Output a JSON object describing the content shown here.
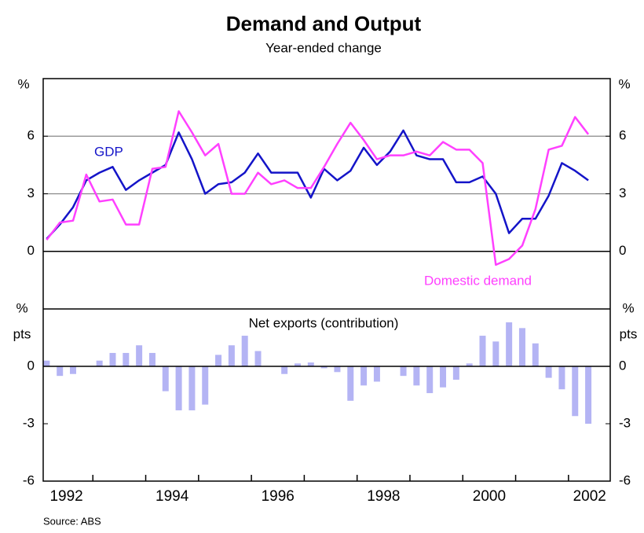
{
  "title": "Demand and Output",
  "subtitle": "Year-ended change",
  "source": "Source: ABS",
  "chart_data": [
    {
      "type": "line",
      "ylabel": "%",
      "x": [
        1992.125,
        1992.375,
        1992.625,
        1992.875,
        1993.125,
        1993.375,
        1993.625,
        1993.875,
        1994.125,
        1994.375,
        1994.625,
        1994.875,
        1995.125,
        1995.375,
        1995.625,
        1995.875,
        1996.125,
        1996.375,
        1996.625,
        1996.875,
        1997.125,
        1997.375,
        1997.625,
        1997.875,
        1998.125,
        1998.375,
        1998.625,
        1998.875,
        1999.125,
        1999.375,
        1999.625,
        1999.875,
        2000.125,
        2000.375,
        2000.625,
        2000.875,
        2001.125,
        2001.375,
        2001.625,
        2001.875,
        2002.125,
        2002.375
      ],
      "series": [
        {
          "name": "GDP",
          "color": "#1414c8",
          "values": [
            0.65,
            1.4,
            2.3,
            3.7,
            4.1,
            4.4,
            3.2,
            3.7,
            4.1,
            4.5,
            6.2,
            4.8,
            3.0,
            3.5,
            3.6,
            4.1,
            5.1,
            4.1,
            4.1,
            4.1,
            2.8,
            4.3,
            3.7,
            4.2,
            5.4,
            4.5,
            5.2,
            6.3,
            5.0,
            4.8,
            4.8,
            3.6,
            3.6,
            3.9,
            3.0,
            0.95,
            1.7,
            1.7,
            2.9,
            4.6,
            4.2,
            3.7
          ]
        },
        {
          "name": "Domestic demand",
          "color": "#ff40ff",
          "values": [
            0.6,
            1.5,
            1.6,
            4.0,
            2.6,
            2.7,
            1.4,
            1.4,
            4.3,
            4.4,
            7.3,
            6.2,
            5.0,
            5.6,
            3.0,
            3.0,
            4.1,
            3.5,
            3.7,
            3.3,
            3.3,
            4.4,
            5.6,
            6.7,
            5.8,
            4.8,
            5.0,
            5.0,
            5.2,
            5.0,
            5.7,
            5.3,
            5.3,
            4.6,
            -0.7,
            -0.4,
            0.3,
            2.2,
            5.3,
            5.5,
            7.0,
            6.1
          ]
        }
      ],
      "xlim": [
        1992.06,
        2002.79
      ],
      "ylim": [
        -3,
        9
      ],
      "yticks": [
        0,
        3,
        6
      ],
      "grid": true
    },
    {
      "type": "bar",
      "title": "Net exports (contribution)",
      "ylabel_lines": [
        "%",
        "pts"
      ],
      "color": "#b4b4f4",
      "x": [
        1992.125,
        1992.375,
        1992.625,
        1992.875,
        1993.125,
        1993.375,
        1993.625,
        1993.875,
        1994.125,
        1994.375,
        1994.625,
        1994.875,
        1995.125,
        1995.375,
        1995.625,
        1995.875,
        1996.125,
        1996.375,
        1996.625,
        1996.875,
        1997.125,
        1997.375,
        1997.625,
        1997.875,
        1998.125,
        1998.375,
        1998.625,
        1998.875,
        1999.125,
        1999.375,
        1999.625,
        1999.875,
        2000.125,
        2000.375,
        2000.625,
        2000.875,
        2001.125,
        2001.375,
        2001.625,
        2001.875,
        2002.125,
        2002.375
      ],
      "values": [
        0.3,
        -0.5,
        -0.4,
        0,
        0.3,
        0.7,
        0.7,
        1.1,
        0.7,
        -1.3,
        -2.3,
        -2.3,
        -2.0,
        0.6,
        1.1,
        1.6,
        0.8,
        0,
        -0.4,
        0.15,
        0.2,
        -0.1,
        -0.3,
        -1.8,
        -1.0,
        -0.8,
        0,
        -0.5,
        -1.0,
        -1.4,
        -1.1,
        -0.7,
        0.15,
        1.6,
        1.3,
        2.3,
        2.0,
        1.2,
        -0.6,
        -1.2,
        -2.6,
        -3.0
      ],
      "xlim": [
        1992.06,
        2002.79
      ],
      "ylim": [
        -6,
        3
      ],
      "yticks": [
        -6,
        -3,
        0
      ],
      "xticks": [
        {
          "value": 1992.5,
          "label": "1992"
        },
        {
          "value": 1994.5,
          "label": "1994"
        },
        {
          "value": 1996.5,
          "label": "1996"
        },
        {
          "value": 1998.5,
          "label": "1998"
        },
        {
          "value": 2000.5,
          "label": "2000"
        },
        {
          "value": 2002.4,
          "label": "2002"
        }
      ],
      "year_ticks": [
        1993,
        1994,
        1995,
        1996,
        1997,
        1998,
        1999,
        2000,
        2001,
        2002
      ]
    }
  ]
}
